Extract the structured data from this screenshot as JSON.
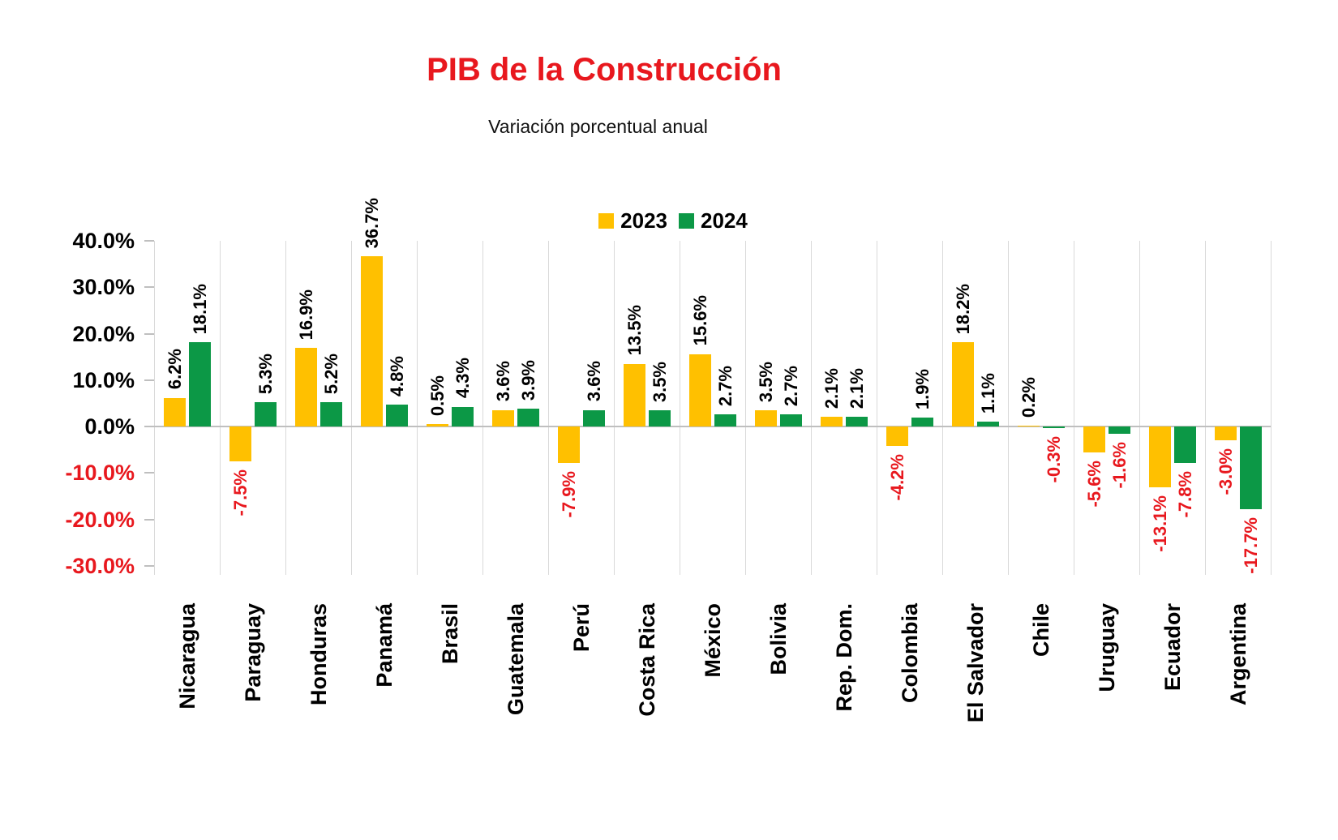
{
  "chart_data": {
    "type": "bar",
    "title": "PIB de la Construcción",
    "subtitle": "Variación porcentual anual",
    "title_color": "#e8181e",
    "negative_color": "#e8181e",
    "positive_label_color": "#000000",
    "categories": [
      "Nicaragua",
      "Paraguay",
      "Honduras",
      "Panamá",
      "Brasil",
      "Guatemala",
      "Perú",
      "Costa Rica",
      "México",
      "Bolivia",
      "Rep. Dom.",
      "Colombia",
      "El Salvador",
      "Chile",
      "Uruguay",
      "Ecuador",
      "Argentina"
    ],
    "series": [
      {
        "name": "2023",
        "color": "#ffc000",
        "values": [
          6.2,
          -7.5,
          16.9,
          36.7,
          0.5,
          3.6,
          -7.9,
          13.5,
          15.6,
          3.5,
          2.1,
          -4.2,
          18.2,
          0.2,
          -5.6,
          -13.1,
          -3.0
        ]
      },
      {
        "name": "2024",
        "color": "#0c9846",
        "values": [
          18.1,
          5.3,
          5.2,
          4.8,
          4.3,
          3.9,
          3.6,
          3.5,
          2.7,
          2.7,
          2.1,
          1.9,
          1.1,
          -0.3,
          -1.6,
          -7.8,
          -17.7
        ]
      }
    ],
    "data_labels": [
      [
        "6.2%",
        "-7.5%",
        "16.9%",
        "36.7%",
        "0.5%",
        "3.6%",
        "-7.9%",
        "13.5%",
        "15.6%",
        "3.5%",
        "2.1%",
        "-4.2%",
        "18.2%",
        "0.2%",
        "-5.6%",
        "-13.1%",
        "-3.0%"
      ],
      [
        "18.1%",
        "5.3%",
        "5.2%",
        "4.8%",
        "4.3%",
        "3.9%",
        "3.6%",
        "3.5%",
        "2.7%",
        "2.7%",
        "2.1%",
        "1.9%",
        "1.1%",
        "-0.3%",
        "-1.6%",
        "-7.8%",
        "-17.7%"
      ]
    ],
    "y_axis": {
      "ticks": [
        "40.0%",
        "30.0%",
        "20.0%",
        "10.0%",
        "0.0%",
        "-10.0%",
        "-20.0%",
        "-30.0%"
      ],
      "max": 40,
      "min": -30,
      "step": 10
    },
    "legend_position": "top",
    "grid": "vertical-category-lines-only"
  }
}
